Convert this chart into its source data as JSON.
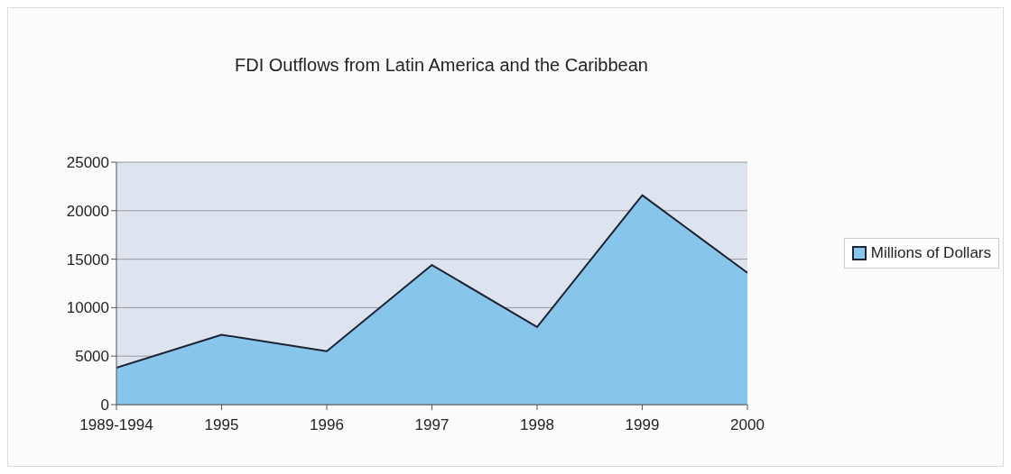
{
  "chart_data": {
    "type": "area",
    "title": "FDI Outflows from Latin America and the Caribbean",
    "categories": [
      "1989-1994",
      "1995",
      "1996",
      "1997",
      "1998",
      "1999",
      "2000"
    ],
    "series": [
      {
        "name": "Millions of Dollars",
        "color": "#87c5ea",
        "values": [
          3800,
          7200,
          5500,
          14400,
          8000,
          21600,
          13600
        ]
      }
    ],
    "ylim": [
      0,
      25000
    ],
    "yticks": [
      0,
      5000,
      10000,
      15000,
      20000,
      25000
    ],
    "grid": "y",
    "legend": "right"
  }
}
